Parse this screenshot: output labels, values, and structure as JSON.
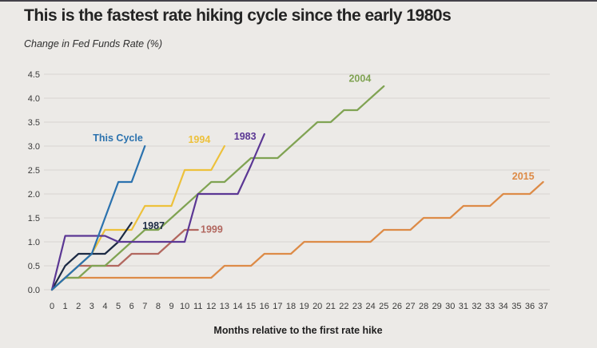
{
  "chart_data": {
    "type": "line",
    "title": "This is the fastest rate hiking cycle since the early 1980s",
    "subtitle": "Change in Fed Funds Rate (%)",
    "xlabel": "Months relative to the first rate hike",
    "ylabel": "Change in Fed Funds Rate (%)",
    "xlim": [
      0,
      37
    ],
    "ylim": [
      0.0,
      4.5
    ],
    "grid": "horizontal",
    "legend_position": "inline-labels",
    "x_ticks": [
      0,
      1,
      2,
      3,
      4,
      5,
      6,
      7,
      8,
      9,
      10,
      11,
      12,
      13,
      14,
      15,
      16,
      17,
      18,
      19,
      20,
      21,
      22,
      23,
      24,
      25,
      26,
      27,
      28,
      29,
      30,
      31,
      32,
      33,
      34,
      35,
      36,
      37
    ],
    "y_ticks": [
      "0.0",
      "0.5",
      "1.0",
      "1.5",
      "2.0",
      "2.5",
      "3.0",
      "3.5",
      "4.0",
      "4.5"
    ],
    "style": {
      "background": "#ECEAE7",
      "grid_color": "#D8D4D1",
      "text_color": "#3a3a3a",
      "title_color": "#242424"
    },
    "series": [
      {
        "id": "2015",
        "name": "2015",
        "color": "#DD8B47",
        "start_month": 0,
        "values": [
          0,
          0.25,
          0.25,
          0.25,
          0.25,
          0.25,
          0.25,
          0.25,
          0.25,
          0.25,
          0.25,
          0.25,
          0.25,
          0.5,
          0.5,
          0.5,
          0.75,
          0.75,
          0.75,
          1.0,
          1.0,
          1.0,
          1.0,
          1.0,
          1.0,
          1.25,
          1.25,
          1.25,
          1.5,
          1.5,
          1.5,
          1.75,
          1.75,
          1.75,
          2.0,
          2.0,
          2.0,
          2.25
        ],
        "label": {
          "text": "2015",
          "month": 35.5,
          "value": 2.3,
          "anchor": "middle"
        }
      },
      {
        "id": "1999",
        "name": "1999",
        "color": "#B2675F",
        "start_month": 0,
        "values": [
          0,
          0.25,
          0.5,
          0.5,
          0.5,
          0.5,
          0.75,
          0.75,
          0.75,
          1.0,
          1.25,
          1.25
        ],
        "label": {
          "text": "1999",
          "month": 11.2,
          "value": 1.19,
          "anchor": "start"
        }
      },
      {
        "id": "2004",
        "name": "2004",
        "color": "#80A353",
        "start_month": 0,
        "values": [
          0,
          0.25,
          0.25,
          0.5,
          0.5,
          0.75,
          1.0,
          1.25,
          1.25,
          1.5,
          1.75,
          2.0,
          2.25,
          2.25,
          2.5,
          2.75,
          2.75,
          2.75,
          3.0,
          3.25,
          3.5,
          3.5,
          3.75,
          3.75,
          4.0,
          4.25
        ],
        "label": {
          "text": "2004",
          "month": 23.2,
          "value": 4.34,
          "anchor": "middle"
        }
      },
      {
        "id": "1994",
        "name": "1994",
        "color": "#EDC13B",
        "start_month": 0,
        "values": [
          0,
          0.25,
          0.5,
          0.75,
          1.25,
          1.25,
          1.25,
          1.75,
          1.75,
          1.75,
          2.5,
          2.5,
          2.5,
          3.0
        ],
        "label": {
          "text": "1994",
          "month": 11.1,
          "value": 3.07,
          "anchor": "middle"
        }
      },
      {
        "id": "1987",
        "name": "1987",
        "color": "#1C2A44",
        "start_month": 0,
        "values": [
          0,
          0.5,
          0.75,
          0.75,
          0.75,
          1.0,
          1.4
        ],
        "label": {
          "text": "1987",
          "month": 7.65,
          "value": 1.27,
          "anchor": "middle"
        }
      },
      {
        "id": "1983",
        "name": "1983",
        "color": "#5B3794",
        "start_month": 0,
        "values": [
          0,
          1.125,
          1.125,
          1.125,
          1.125,
          1.0,
          1.0,
          1.0,
          1.0,
          1.0,
          1.0,
          2.0,
          2.0,
          2.0,
          2.0,
          2.6,
          3.25
        ],
        "label": {
          "text": "1983",
          "month": 14.55,
          "value": 3.13,
          "anchor": "middle"
        }
      },
      {
        "id": "this-cycle",
        "name": "This Cycle",
        "color": "#2B72AE",
        "start_month": 0,
        "values": [
          0,
          0.25,
          0.5,
          0.75,
          1.5,
          2.25,
          2.25,
          3.0
        ],
        "label": {
          "text": "This Cycle",
          "month": 6.85,
          "value": 3.1,
          "anchor": "end"
        }
      }
    ]
  }
}
